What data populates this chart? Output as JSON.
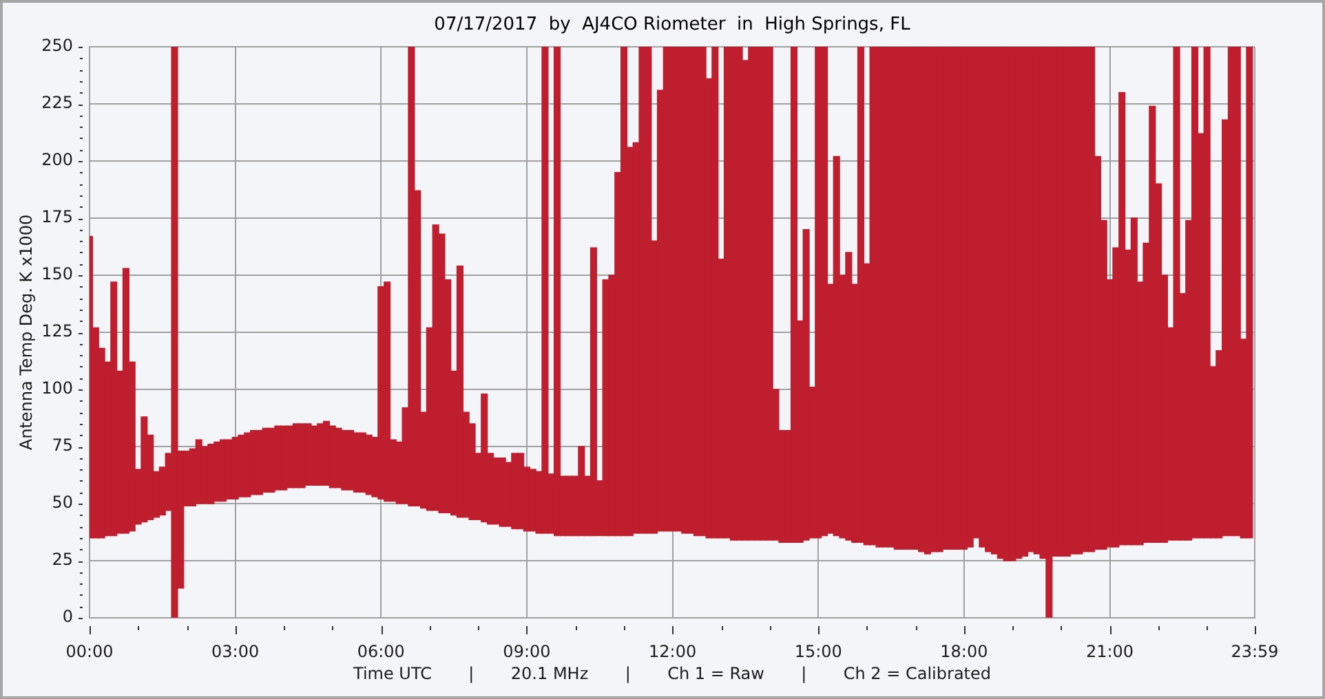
{
  "chart_data": {
    "type": "bar",
    "title": "07/17/2017  by  AJ4CO Riometer  in  High Springs, FL",
    "xlabel": "Time UTC       |       20.1 MHz       |       Ch 1 = Raw       |       Ch 2 = Calibrated",
    "ylabel": "Antenna Temp Deg. K x1000",
    "color": "#be1e2d",
    "x": [
      0,
      0.125,
      0.25,
      0.375,
      0.5,
      0.625,
      0.75,
      0.875,
      1,
      1.125,
      1.25,
      1.375,
      1.5,
      1.625,
      1.75,
      1.875,
      2,
      2.125,
      2.25,
      2.375,
      2.5,
      2.625,
      2.75,
      2.875,
      3,
      3.125,
      3.25,
      3.375,
      3.5,
      3.625,
      3.75,
      3.875,
      4,
      4.125,
      4.25,
      4.375,
      4.5,
      4.625,
      4.75,
      4.875,
      5,
      5.125,
      5.25,
      5.375,
      5.5,
      5.625,
      5.75,
      5.875,
      6,
      6.125,
      6.25,
      6.375,
      6.5,
      6.625,
      6.75,
      6.875,
      7,
      7.125,
      7.25,
      7.375,
      7.5,
      7.625,
      7.75,
      7.875,
      8,
      8.125,
      8.25,
      8.375,
      8.5,
      8.625,
      8.75,
      8.875,
      9,
      9.125,
      9.25,
      9.375,
      9.5,
      9.625,
      9.75,
      9.875,
      10,
      10.125,
      10.25,
      10.375,
      10.5,
      10.625,
      10.75,
      10.875,
      11,
      11.125,
      11.25,
      11.375,
      11.5,
      11.625,
      11.75,
      11.875,
      12,
      12.125,
      12.25,
      12.375,
      12.5,
      12.625,
      12.75,
      12.875,
      13,
      13.125,
      13.25,
      13.375,
      13.5,
      13.625,
      13.75,
      13.875,
      14,
      14.125,
      14.25,
      14.375,
      14.5,
      14.625,
      14.75,
      14.875,
      15,
      15.125,
      15.25,
      15.375,
      15.5,
      15.625,
      15.75,
      15.875,
      16,
      16.125,
      16.25,
      16.375,
      16.5,
      16.625,
      16.75,
      16.875,
      17,
      17.125,
      17.25,
      17.375,
      17.5,
      17.625,
      17.75,
      17.875,
      18,
      18.125,
      18.25,
      18.375,
      18.5,
      18.625,
      18.75,
      18.875,
      19,
      19.125,
      19.25,
      19.375,
      19.5,
      19.625,
      19.75,
      19.875,
      20,
      20.125,
      20.25,
      20.375,
      20.5,
      20.625,
      20.75,
      20.875,
      21,
      21.125,
      21.25,
      21.375,
      21.5,
      21.625,
      21.75,
      21.875,
      22,
      22.125,
      22.25,
      22.375,
      22.5,
      22.625,
      22.75,
      22.875,
      23,
      23.125,
      23.25,
      23.375,
      23.5,
      23.625,
      23.75,
      23.875
    ],
    "base": [
      35,
      35,
      35,
      36,
      36,
      37,
      37,
      38,
      41,
      42,
      43,
      44,
      45,
      47,
      0,
      13,
      49,
      49,
      50,
      50,
      50,
      51,
      51,
      52,
      52,
      53,
      53,
      54,
      54,
      55,
      55,
      56,
      56,
      57,
      57,
      57,
      58,
      58,
      58,
      58,
      57,
      57,
      56,
      56,
      55,
      55,
      54,
      53,
      52,
      51,
      51,
      50,
      50,
      49,
      49,
      48,
      47,
      47,
      46,
      46,
      45,
      44,
      44,
      43,
      43,
      42,
      41,
      41,
      40,
      40,
      39,
      39,
      38,
      38,
      37,
      37,
      37,
      36,
      36,
      36,
      36,
      36,
      36,
      36,
      36,
      36,
      36,
      36,
      36,
      36,
      37,
      37,
      37,
      37,
      38,
      38,
      38,
      38,
      37,
      37,
      36,
      36,
      35,
      35,
      35,
      35,
      34,
      34,
      34,
      34,
      34,
      34,
      34,
      34,
      33,
      33,
      33,
      33,
      34,
      35,
      35,
      36,
      37,
      36,
      35,
      34,
      33,
      33,
      32,
      32,
      31,
      31,
      31,
      30,
      30,
      30,
      30,
      29,
      28,
      29,
      29,
      30,
      30,
      30,
      30,
      31,
      35,
      31,
      29,
      28,
      26,
      25,
      25,
      26,
      27,
      29,
      28,
      26,
      0,
      27,
      27,
      27,
      28,
      28,
      29,
      29,
      30,
      30,
      31,
      31,
      32,
      32,
      32,
      32,
      33,
      33,
      33,
      33,
      34,
      34,
      34,
      34,
      35,
      35,
      35,
      35,
      35,
      36,
      36,
      36,
      35,
      35
    ],
    "values": [
      132,
      92,
      83,
      76,
      111,
      71,
      116,
      74,
      24,
      46,
      37,
      20,
      21,
      25,
      250,
      60,
      24,
      25,
      28,
      25,
      26,
      26,
      27,
      26,
      27,
      27,
      28,
      28,
      28,
      28,
      28,
      28,
      28,
      27,
      28,
      28,
      27,
      26,
      27,
      28,
      27,
      26,
      26,
      26,
      26,
      26,
      26,
      26,
      93,
      96,
      27,
      27,
      42,
      201,
      138,
      42,
      80,
      125,
      122,
      102,
      63,
      110,
      46,
      42,
      29,
      56,
      31,
      29,
      30,
      28,
      33,
      33,
      28,
      27,
      27,
      213,
      26,
      214,
      26,
      26,
      26,
      39,
      26,
      126,
      24,
      112,
      114,
      159,
      214,
      170,
      171,
      213,
      213,
      128,
      193,
      212,
      212,
      212,
      213,
      213,
      214,
      214,
      201,
      215,
      122,
      215,
      216,
      216,
      210,
      216,
      216,
      216,
      216,
      66,
      49,
      49,
      217,
      97,
      136,
      66,
      215,
      214,
      109,
      166,
      115,
      126,
      113,
      217,
      123,
      218,
      219,
      219,
      219,
      220,
      220,
      220,
      220,
      221,
      222,
      221,
      221,
      220,
      220,
      220,
      220,
      219,
      215,
      219,
      221,
      222,
      224,
      225,
      225,
      224,
      223,
      221,
      222,
      224,
      250,
      223,
      223,
      223,
      222,
      222,
      221,
      221,
      172,
      144,
      117,
      131,
      198,
      129,
      143,
      115,
      131,
      191,
      157,
      117,
      93,
      216,
      108,
      140,
      215,
      177,
      215,
      75,
      82,
      182,
      214,
      214,
      87,
      215
    ],
    "xlim": [
      0,
      23.983
    ],
    "xticks": [
      {
        "value": 0,
        "label": "00:00"
      },
      {
        "value": 1,
        "label": null
      },
      {
        "value": 2,
        "label": null
      },
      {
        "value": 3,
        "label": "03:00"
      },
      {
        "value": 4,
        "label": null
      },
      {
        "value": 5,
        "label": null
      },
      {
        "value": 6,
        "label": "06:00"
      },
      {
        "value": 7,
        "label": null
      },
      {
        "value": 8,
        "label": null
      },
      {
        "value": 9,
        "label": "09:00"
      },
      {
        "value": 10,
        "label": null
      },
      {
        "value": 11,
        "label": null
      },
      {
        "value": 12,
        "label": "12:00"
      },
      {
        "value": 13,
        "label": null
      },
      {
        "value": 14,
        "label": null
      },
      {
        "value": 15,
        "label": "15:00"
      },
      {
        "value": 16,
        "label": null
      },
      {
        "value": 17,
        "label": null
      },
      {
        "value": 18,
        "label": "18:00"
      },
      {
        "value": 19,
        "label": null
      },
      {
        "value": 20,
        "label": null
      },
      {
        "value": 21,
        "label": "21:00"
      },
      {
        "value": 22,
        "label": null
      },
      {
        "value": 23,
        "label": null
      },
      {
        "value": 23.983,
        "label": "23:59"
      }
    ],
    "ylim": [
      0,
      250
    ],
    "yticks": [
      0,
      {
        "value": 5,
        "label": null
      },
      {
        "value": 10,
        "label": null
      },
      {
        "value": 15,
        "label": null
      },
      {
        "value": 20,
        "label": null
      },
      25,
      {
        "value": 30,
        "label": null
      },
      {
        "value": 35,
        "label": null
      },
      {
        "value": 40,
        "label": null
      },
      {
        "value": 45,
        "label": null
      },
      50,
      {
        "value": 55,
        "label": null
      },
      {
        "value": 60,
        "label": null
      },
      {
        "value": 65,
        "label": null
      },
      {
        "value": 70,
        "label": null
      },
      75,
      {
        "value": 80,
        "label": null
      },
      {
        "value": 85,
        "label": null
      },
      {
        "value": 90,
        "label": null
      },
      {
        "value": 95,
        "label": null
      },
      100,
      {
        "value": 105,
        "label": null
      },
      {
        "value": 110,
        "label": null
      },
      {
        "value": 115,
        "label": null
      },
      {
        "value": 120,
        "label": null
      },
      125,
      {
        "value": 130,
        "label": null
      },
      {
        "value": 135,
        "label": null
      },
      {
        "value": 140,
        "label": null
      },
      {
        "value": 145,
        "label": null
      },
      150,
      {
        "value": 155,
        "label": null
      },
      {
        "value": 160,
        "label": null
      },
      {
        "value": 165,
        "label": null
      },
      {
        "value": 170,
        "label": null
      },
      175,
      {
        "value": 180,
        "label": null
      },
      {
        "value": 185,
        "label": null
      },
      {
        "value": 190,
        "label": null
      },
      {
        "value": 195,
        "label": null
      },
      200,
      {
        "value": 205,
        "label": null
      },
      {
        "value": 210,
        "label": null
      },
      {
        "value": 215,
        "label": null
      },
      {
        "value": 220,
        "label": null
      },
      225,
      {
        "value": 230,
        "label": null
      },
      {
        "value": 235,
        "label": null
      },
      {
        "value": 240,
        "label": null
      },
      {
        "value": 245,
        "label": null
      },
      250
    ],
    "grid": true
  }
}
